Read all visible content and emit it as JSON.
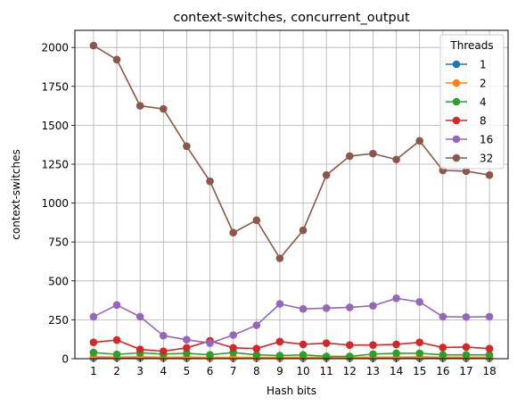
{
  "chart_data": {
    "type": "line",
    "title": "context-switches, concurrent_output",
    "xlabel": "Hash bits",
    "ylabel": "context-switches",
    "x": [
      1,
      2,
      3,
      4,
      5,
      6,
      7,
      8,
      9,
      10,
      11,
      12,
      13,
      14,
      15,
      16,
      17,
      18
    ],
    "xlim": [
      0.2,
      18.8
    ],
    "ylim": [
      0,
      2110
    ],
    "yticks": [
      0,
      250,
      500,
      750,
      1000,
      1250,
      1500,
      1750,
      2000
    ],
    "grid": true,
    "legend": {
      "title": "Threads",
      "placement": "top-right"
    },
    "series": [
      {
        "name": "1",
        "color": "#1f77b4",
        "values": [
          5,
          5,
          5,
          4,
          4,
          4,
          4,
          4,
          4,
          4,
          4,
          4,
          4,
          4,
          4,
          4,
          4,
          4
        ]
      },
      {
        "name": "2",
        "color": "#ff7f0e",
        "values": [
          12,
          10,
          12,
          9,
          10,
          8,
          8,
          8,
          8,
          9,
          8,
          8,
          10,
          10,
          12,
          10,
          10,
          10
        ]
      },
      {
        "name": "4",
        "color": "#2ca02c",
        "values": [
          40,
          28,
          38,
          30,
          35,
          25,
          40,
          25,
          20,
          25,
          15,
          15,
          30,
          35,
          35,
          25,
          25,
          25
        ]
      },
      {
        "name": "8",
        "color": "#d62728",
        "values": [
          105,
          120,
          60,
          48,
          70,
          115,
          70,
          65,
          110,
          92,
          100,
          88,
          88,
          92,
          105,
          72,
          75,
          65
        ]
      },
      {
        "name": "16",
        "color": "#9467bd",
        "values": [
          270,
          345,
          270,
          148,
          122,
          100,
          152,
          215,
          352,
          320,
          325,
          330,
          340,
          388,
          365,
          270,
          268,
          270
        ]
      },
      {
        "name": "32",
        "color": "#8c564b",
        "values": [
          2012,
          1922,
          1625,
          1605,
          1365,
          1140,
          810,
          890,
          645,
          825,
          1180,
          1302,
          1318,
          1280,
          1400,
          1210,
          1205,
          1180
        ]
      }
    ]
  }
}
